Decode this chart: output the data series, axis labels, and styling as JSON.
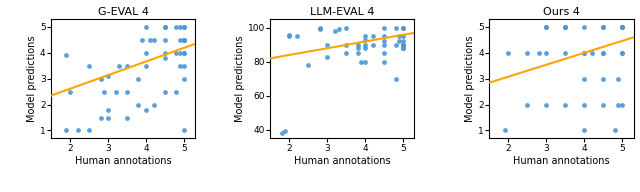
{
  "subplots": [
    {
      "title": "G-EVAL 4",
      "xlabel": "Human annotations",
      "ylabel": "Model predictions",
      "xlim": [
        1.5,
        5.3
      ],
      "ylim": [
        0.7,
        5.3
      ],
      "xticks": [
        2,
        3,
        4,
        5
      ],
      "yticks": [
        1,
        2,
        3,
        4,
        5
      ],
      "scatter_x": [
        1.9,
        1.9,
        2.0,
        2.2,
        2.5,
        2.5,
        2.8,
        2.8,
        2.9,
        3.0,
        3.0,
        3.0,
        3.2,
        3.3,
        3.5,
        3.5,
        3.5,
        3.8,
        3.8,
        3.9,
        4.0,
        4.0,
        4.0,
        4.0,
        4.1,
        4.2,
        4.2,
        4.5,
        4.5,
        4.5,
        4.5,
        4.5,
        4.5,
        4.8,
        4.8,
        4.8,
        4.9,
        4.9,
        4.9,
        4.9,
        5.0,
        5.0,
        5.0,
        5.0,
        5.0,
        5.0,
        5.0,
        5.0,
        5.0,
        5.0
      ],
      "scatter_y": [
        1.0,
        3.9,
        2.5,
        1.0,
        1.0,
        3.5,
        1.5,
        3.0,
        2.5,
        3.1,
        1.5,
        1.8,
        2.5,
        3.5,
        3.5,
        1.5,
        2.5,
        2.0,
        3.0,
        4.5,
        4.0,
        1.8,
        3.5,
        5.0,
        4.5,
        2.0,
        4.5,
        3.8,
        4.5,
        5.0,
        2.5,
        5.0,
        4.0,
        4.0,
        2.5,
        5.0,
        4.0,
        4.5,
        5.0,
        3.5,
        4.0,
        4.5,
        5.0,
        3.5,
        4.5,
        5.0,
        1.0,
        4.0,
        3.0,
        4.5
      ],
      "line_x": [
        1.5,
        5.3
      ],
      "line_y": [
        2.35,
        4.35
      ]
    },
    {
      "title": "LLM-EVAL 4",
      "xlabel": "Human annotations",
      "ylabel": "Model predictions",
      "xlim": [
        1.5,
        5.3
      ],
      "ylim": [
        35,
        105
      ],
      "xticks": [
        2,
        3,
        4,
        5
      ],
      "yticks": [
        40,
        60,
        80,
        100
      ],
      "scatter_x": [
        1.8,
        1.9,
        2.0,
        2.0,
        2.2,
        2.5,
        2.8,
        2.8,
        3.0,
        3.0,
        3.2,
        3.3,
        3.5,
        3.5,
        3.5,
        3.8,
        3.8,
        3.8,
        3.9,
        4.0,
        4.0,
        4.0,
        4.0,
        4.0,
        4.2,
        4.2,
        4.5,
        4.5,
        4.5,
        4.5,
        4.5,
        4.5,
        4.8,
        4.8,
        4.8,
        4.9,
        4.9,
        5.0,
        5.0,
        5.0,
        5.0,
        5.0,
        5.0,
        5.0,
        5.0,
        5.0
      ],
      "scatter_y": [
        38,
        39,
        95,
        96,
        95,
        78,
        100,
        99,
        90,
        83,
        98,
        99,
        85,
        90,
        100,
        88,
        90,
        85,
        80,
        90,
        93,
        95,
        88,
        80,
        90,
        95,
        90,
        92,
        95,
        80,
        85,
        100,
        70,
        90,
        100,
        92,
        95,
        88,
        90,
        92,
        95,
        100,
        90,
        88,
        100,
        90
      ],
      "line_x": [
        1.5,
        5.3
      ],
      "line_y": [
        82,
        97
      ]
    },
    {
      "title": "Ours 4",
      "xlabel": "Human annotations",
      "ylabel": "Model predictions",
      "xlim": [
        1.5,
        5.3
      ],
      "ylim": [
        0.7,
        5.3
      ],
      "xticks": [
        2,
        3,
        4,
        5
      ],
      "yticks": [
        1,
        2,
        3,
        4,
        5
      ],
      "scatter_x": [
        1.9,
        2.0,
        2.5,
        2.5,
        2.8,
        3.0,
        3.0,
        3.0,
        3.0,
        3.5,
        3.5,
        3.5,
        3.5,
        3.5,
        4.0,
        4.0,
        4.0,
        4.0,
        4.0,
        4.0,
        4.2,
        4.5,
        4.5,
        4.5,
        4.5,
        4.5,
        4.5,
        4.8,
        4.9,
        4.9,
        5.0,
        5.0,
        5.0,
        5.0,
        5.0,
        5.0,
        5.0
      ],
      "scatter_y": [
        1.0,
        4.0,
        2.0,
        4.0,
        4.0,
        5.0,
        4.0,
        2.0,
        5.0,
        5.0,
        4.0,
        2.0,
        5.0,
        5.0,
        3.0,
        4.0,
        2.0,
        1.0,
        5.0,
        4.0,
        4.0,
        3.0,
        5.0,
        4.0,
        2.0,
        5.0,
        4.0,
        1.0,
        3.0,
        2.0,
        5.0,
        4.0,
        5.0,
        4.0,
        2.0,
        5.0,
        5.0
      ],
      "line_x": [
        1.5,
        5.3
      ],
      "line_y": [
        2.85,
        4.6
      ]
    }
  ],
  "dot_color": "#4C96D7",
  "line_color": "#FFA500",
  "dot_size": 12,
  "title_fontsize": 8,
  "label_fontsize": 7,
  "tick_fontsize": 6.5
}
